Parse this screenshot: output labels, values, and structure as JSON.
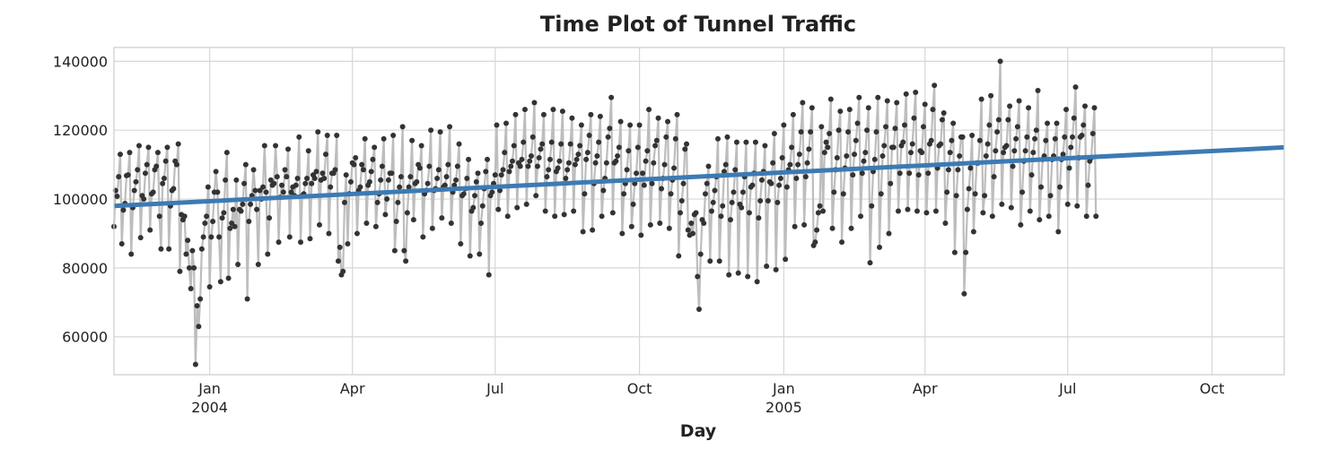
{
  "chart_data": {
    "type": "line",
    "title": "Time Plot of Tunnel Traffic",
    "xlabel": "Day",
    "ylabel": "",
    "x_range": [
      "2003-11-01",
      "2005-11-16"
    ],
    "ylim": [
      49000,
      144000
    ],
    "y_ticks": [
      60000,
      80000,
      100000,
      120000,
      140000
    ],
    "y_tick_labels": [
      "60000",
      "80000",
      "100000",
      "120000",
      "140000"
    ],
    "x_ticks": [
      {
        "date": "2004-01-01",
        "label": "Jan",
        "sublabel": "2004"
      },
      {
        "date": "2004-04-01",
        "label": "Apr",
        "sublabel": ""
      },
      {
        "date": "2004-07-01",
        "label": "Jul",
        "sublabel": ""
      },
      {
        "date": "2004-10-01",
        "label": "Oct",
        "sublabel": ""
      },
      {
        "date": "2005-01-01",
        "label": "Jan",
        "sublabel": "2005"
      },
      {
        "date": "2005-04-01",
        "label": "Apr",
        "sublabel": ""
      },
      {
        "date": "2005-07-01",
        "label": "Jul",
        "sublabel": ""
      },
      {
        "date": "2005-10-01",
        "label": "Oct",
        "sublabel": ""
      }
    ],
    "grid": true,
    "series": [
      {
        "start": "2003-11-01",
        "step_days": 1,
        "color": "#bdbdbd",
        "marker_color": "#333333",
        "values": [
          92000,
          102500,
          100800,
          106500,
          113000,
          87000,
          96800,
          98700,
          106800,
          107000,
          113500,
          84000,
          97500,
          102500,
          105000,
          108500,
          115500,
          88800,
          101000,
          100000,
          107500,
          110000,
          115000,
          91000,
          101500,
          102000,
          108500,
          109500,
          113500,
          95000,
          85500,
          104500,
          106000,
          111000,
          115000,
          85500,
          98000,
          102500,
          103000,
          111000,
          110000,
          116000,
          79000,
          95500,
          94000,
          95000,
          84000,
          88000,
          80000,
          74000,
          85000,
          80000,
          52000,
          69000,
          63000,
          71000,
          85500,
          89000,
          93000,
          95000,
          103500,
          74500,
          89000,
          93500,
          102000,
          108000,
          102000,
          89000,
          76000,
          94500,
          96000,
          105500,
          113500,
          77000,
          91500,
          93000,
          97000,
          92000,
          105500,
          81000,
          97000,
          96500,
          98500,
          104500,
          110000,
          71000,
          93500,
          98500,
          101000,
          108500,
          102500,
          97000,
          81000,
          102500,
          100000,
          103500,
          115500,
          102000,
          84000,
          94500,
          105500,
          104000,
          104500,
          115500,
          106500,
          87500,
          100500,
          104000,
          102000,
          108500,
          106500,
          114500,
          89000,
          102000,
          103500,
          101000,
          104000,
          106000,
          118000,
          87500,
          101000,
          101500,
          104500,
          106000,
          114000,
          88500,
          104500,
          107000,
          106000,
          108000,
          119500,
          92500,
          105500,
          107500,
          106000,
          113000,
          118500,
          90000,
          103500,
          107500,
          107500,
          108500,
          118500,
          82000,
          86000,
          78000,
          79000,
          99000,
          107000,
          87000,
          101500,
          105000,
          110500,
          110000,
          112000,
          90000,
          102500,
          103500,
          110000,
          108500,
          117500,
          93000,
          104000,
          105000,
          108000,
          111500,
          115000,
          92000,
          99000,
          101500,
          105500,
          109500,
          117500,
          95500,
          100000,
          105500,
          107500,
          107500,
          118500,
          85000,
          93500,
          99000,
          103500,
          106500,
          121000,
          85000,
          82000,
          96000,
          103500,
          106500,
          117000,
          94000,
          104500,
          105000,
          110000,
          109000,
          115500,
          89000,
          101500,
          102500,
          104500,
          109500,
          120000,
          91500,
          102500,
          103000,
          106000,
          108500,
          119500,
          94500,
          103500,
          104000,
          106500,
          110000,
          121000,
          93000,
          102000,
          104000,
          105500,
          109500,
          116000,
          87000,
          101000,
          101500,
          103000,
          106000,
          111500,
          83500,
          96500,
          97500,
          101000,
          105000,
          107500,
          84000,
          93000,
          98000,
          103000,
          108000,
          111500,
          78000,
          101000,
          102000,
          104500,
          107000,
          121500,
          97000,
          102500,
          107000,
          108500,
          113500,
          122000,
          95000,
          108000,
          109500,
          111000,
          115500,
          124500,
          97500,
          110500,
          109500,
          111500,
          116500,
          126000,
          98500,
          109500,
          111000,
          112500,
          118000,
          128000,
          101000,
          109500,
          112000,
          114500,
          116000,
          124500,
          96500,
          106500,
          108500,
          111500,
          116500,
          126000,
          95000,
          108000,
          109000,
          111000,
          116000,
          125500,
          95500,
          106000,
          108500,
          110500,
          116000,
          123500,
          96500,
          110000,
          111500,
          113000,
          115500,
          121500,
          90500,
          101500,
          111500,
          113500,
          118500,
          124500,
          91000,
          104500,
          110500,
          112500,
          116500,
          124000,
          95000,
          102500,
          106000,
          110500,
          118000,
          120500,
          129500,
          96000,
          110500,
          111000,
          112500,
          115000,
          122500,
          90000,
          101500,
          104500,
          108500,
          114000,
          121500,
          92000,
          98500,
          104500,
          107500,
          115000,
          121500,
          89500,
          107500,
          104000,
          111000,
          114000,
          126000,
          92500,
          104500,
          110500,
          115500,
          117000,
          123500,
          93000,
          103000,
          106000,
          110000,
          118000,
          122500,
          91500,
          101500,
          105500,
          109000,
          117500,
          124500,
          83500,
          96000,
          99500,
          104500,
          114500,
          116000,
          91000,
          89500,
          93000,
          90000,
          95500,
          96000,
          77500,
          68000,
          84000,
          94000,
          93000,
          101500,
          104500,
          109500,
          82000,
          96500,
          99000,
          102500,
          106500,
          117500,
          82000,
          95000,
          98000,
          108000,
          110000,
          118000,
          78000,
          94000,
          99000,
          102000,
          108500,
          116500,
          78500,
          98500,
          97500,
          102000,
          106500,
          116500,
          77500,
          96000,
          103500,
          104000,
          107500,
          116500,
          76000,
          94500,
          99500,
          105500,
          108000,
          115500,
          80500,
          99500,
          105000,
          104500,
          110500,
          119000,
          79500,
          99000,
          104000,
          106000,
          112000,
          121500,
          82500,
          103500,
          108500,
          110000,
          115000,
          124500,
          92000,
          106000,
          110000,
          113000,
          119500,
          128000,
          92500,
          106500,
          110500,
          114500,
          119500,
          126500,
          86500,
          87500,
          91000,
          96000,
          98000,
          121000,
          96500,
          113500,
          116500,
          115000,
          119000,
          129000,
          91500,
          102000,
          108500,
          112000,
          120000,
          125500,
          87500,
          101500,
          109000,
          112500,
          119500,
          126000,
          91500,
          107000,
          113000,
          117000,
          122000,
          129500,
          95000,
          107500,
          111000,
          113500,
          120000,
          126500,
          81500,
          98000,
          108000,
          111500,
          119500,
          129500,
          86000,
          101500,
          112500,
          115500,
          121000,
          128500,
          90000,
          104500,
          115000,
          115000,
          120500,
          128000,
          96500,
          107500,
          115500,
          116500,
          121500,
          130500,
          97000,
          107500,
          113500,
          116000,
          123500,
          131000,
          96500,
          107000,
          114000,
          113500,
          121000,
          127500,
          96000,
          107500,
          116000,
          117000,
          126000,
          133000,
          96500,
          109000,
          115500,
          116000,
          123000,
          125000,
          93000,
          102000,
          108500,
          113500,
          117000,
          122000,
          84500,
          101000,
          108500,
          112500,
          118000,
          118000,
          72500,
          84500,
          97000,
          103000,
          109000,
          118500,
          90500,
          101500,
          110500,
          110500,
          117000,
          129000,
          96000,
          101000,
          112500,
          116000,
          121500,
          130000,
          95000,
          106500,
          114000,
          119500,
          123000,
          140000,
          98500,
          113500,
          115000,
          115500,
          123000,
          127000,
          97500,
          109500,
          114000,
          117500,
          121000,
          128500,
          92500,
          102000,
          111000,
          114000,
          118000,
          126500,
          96500,
          107000,
          113500,
          117500,
          120000,
          131500,
          94000,
          103500,
          111500,
          112500,
          117000,
          122000,
          95000,
          101000,
          111500,
          112500,
          117500,
          122000,
          90500,
          103500,
          111500,
          113000,
          118000,
          126000,
          98500,
          109000,
          115000,
          118000,
          123500,
          132500,
          98000,
          112000,
          118000,
          118500,
          121500,
          127000,
          95000,
          104000,
          111000,
          112000,
          119000,
          126500,
          95000
        ]
      },
      {
        "type": "trend",
        "start": "2003-11-01",
        "end": "2005-11-16",
        "y_start": 98000,
        "y_end": 115000,
        "color": "#3c7ab4"
      }
    ]
  }
}
